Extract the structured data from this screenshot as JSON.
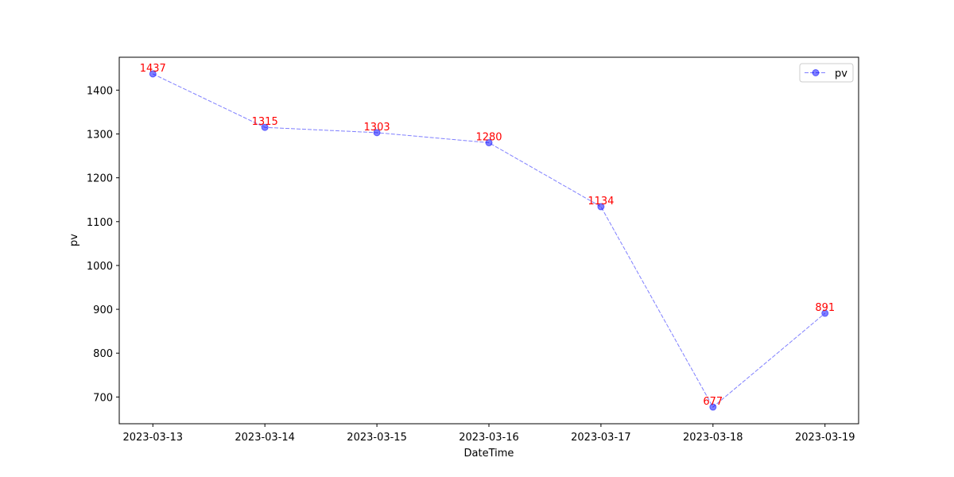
{
  "chart_data": {
    "type": "line",
    "x_label": "DateTime",
    "y_label": "pv",
    "categories": [
      "2023-03-13",
      "2023-03-14",
      "2023-03-15",
      "2023-03-16",
      "2023-03-17",
      "2023-03-18",
      "2023-03-19"
    ],
    "series": [
      {
        "name": "pv",
        "color": "#0000ff",
        "values": [
          1437,
          1315,
          1303,
          1280,
          1134,
          677,
          891
        ]
      }
    ],
    "label_color": "#ff0000",
    "ylim": [
      639,
      1475
    ],
    "yticks": [
      700,
      800,
      900,
      1000,
      1100,
      1200,
      1300,
      1400
    ],
    "legend": "upper right"
  }
}
